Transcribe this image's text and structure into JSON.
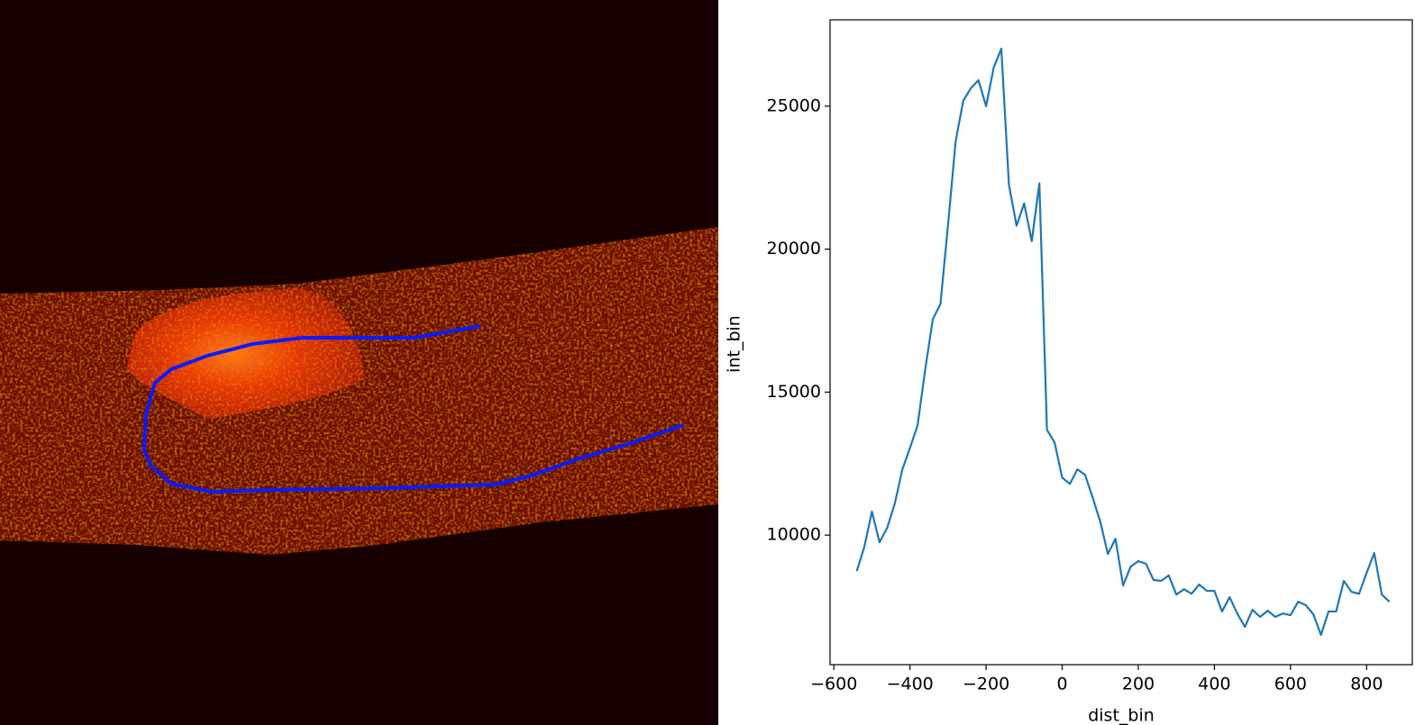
{
  "chart_data": {
    "type": "line",
    "xlabel": "dist_bin",
    "ylabel": "int_bin",
    "x": [
      -540,
      -520,
      -500,
      -480,
      -460,
      -440,
      -420,
      -400,
      -380,
      -360,
      -340,
      -320,
      -300,
      -280,
      -260,
      -240,
      -220,
      -200,
      -180,
      -160,
      -140,
      -120,
      -100,
      -80,
      -60,
      -40,
      -20,
      0,
      20,
      40,
      60,
      80,
      100,
      120,
      140,
      160,
      180,
      200,
      220,
      240,
      260,
      280,
      300,
      320,
      340,
      360,
      380,
      400,
      420,
      440,
      460,
      480,
      500,
      520,
      540,
      560,
      580,
      600,
      620,
      640,
      660,
      680,
      700,
      720,
      740,
      760,
      780,
      800,
      820,
      840,
      860
    ],
    "values": [
      8740,
      9590,
      10820,
      9750,
      10250,
      11100,
      12300,
      13050,
      13840,
      15790,
      17550,
      18080,
      20850,
      23770,
      25190,
      25630,
      25910,
      25000,
      26350,
      27010,
      22260,
      20820,
      21600,
      20280,
      22300,
      13680,
      13240,
      12010,
      11790,
      12300,
      12110,
      11320,
      10470,
      9340,
      9870,
      8240,
      8900,
      9090,
      9000,
      8430,
      8400,
      8590,
      7920,
      8110,
      7950,
      8270,
      8050,
      8050,
      7330,
      7830,
      7260,
      6790,
      7390,
      7140,
      7360,
      7140,
      7260,
      7200,
      7670,
      7550,
      7230,
      6510,
      7330,
      7330,
      8400,
      8020,
      7950,
      8680,
      9370,
      7920,
      7670
    ],
    "color": "#1f77b4",
    "xlim": [
      -610,
      920
    ],
    "xticks": [
      {
        "value": -600,
        "label": "−600"
      },
      {
        "value": -400,
        "label": "−400"
      },
      {
        "value": -200,
        "label": "−200"
      },
      0,
      200,
      400,
      600,
      800
    ],
    "ylim": [
      5470,
      28020
    ],
    "yticks": [
      10000,
      15000,
      20000,
      25000
    ]
  }
}
